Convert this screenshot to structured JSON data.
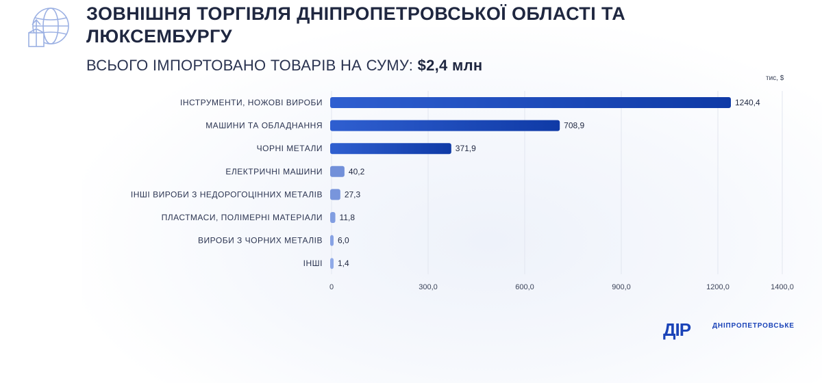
{
  "header": {
    "icon": "globe-trade-icon",
    "title": "ЗОВНІШНЯ ТОРГІВЛЯ ДНІПРОПЕТРОВСЬКОЇ ОБЛАСТІ ТА ЛЮКСЕМБУРГУ",
    "subtitle_prefix": "ВСЬОГО ІМПОРТОВАНО ТОВАРІВ НА СУМУ:",
    "subtitle_amount": "$2,4 млн"
  },
  "chart_data": {
    "type": "bar",
    "orientation": "horizontal",
    "unit": "тис, $",
    "categories": [
      "ІНСТРУМЕНТИ, НОЖОВІ ВИРОБИ",
      "МАШИНИ ТА ОБЛАДНАННЯ",
      "ЧОРНІ МЕТАЛИ",
      "ЕЛЕКТРИЧНІ МАШИНИ",
      "ІНШІ ВИРОБИ З НЕДОРОГОЦІННИХ МЕТАЛІВ",
      "ПЛАСТМАСИ, ПОЛІМЕРНІ МАТЕРІАЛИ",
      "ВИРОБИ З ЧОРНИХ МЕТАЛІВ",
      "ІНШІ"
    ],
    "values": [
      1240.4,
      708.9,
      371.9,
      40.2,
      27.3,
      11.8,
      6.0,
      1.4
    ],
    "value_labels": [
      "1240,4",
      "708,9",
      "371,9",
      "40,2",
      "27,3",
      "11,8",
      "6,0",
      "1,4"
    ],
    "xlim": [
      0,
      1400
    ],
    "xticks": [
      0,
      300,
      600,
      900,
      1200,
      1400
    ],
    "xtick_labels": [
      "0",
      "300,0",
      "600,0",
      "900,0",
      "1200,0",
      "1400,0"
    ],
    "grid": true,
    "legend": "none",
    "colors": {
      "bar_dark": "#0f3aa6",
      "bar_light": "#7f9be6",
      "grid": "#e2e6ef"
    }
  },
  "footer": {
    "logo_mark": "ДІР",
    "logo_text": "ДНІПРОПЕТРОВСЬКЕ"
  }
}
